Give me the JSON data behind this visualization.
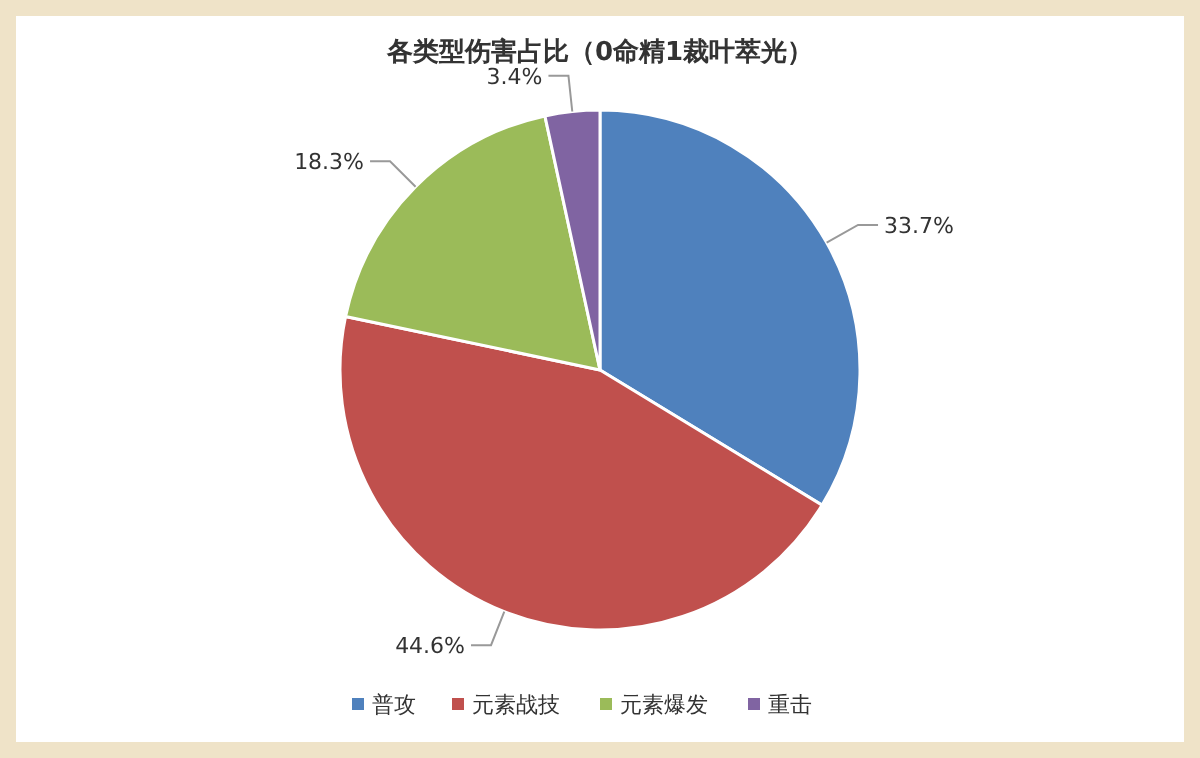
{
  "chart_data": {
    "type": "pie",
    "title": "各类型伤害占比（0命精1裁叶萃光）",
    "categories": [
      "普攻",
      "元素战技",
      "元素爆发",
      "重击"
    ],
    "values": [
      33.7,
      44.6,
      18.3,
      3.4
    ],
    "colors": [
      "#4f81bd",
      "#c0504d",
      "#9bbb59",
      "#8064a2"
    ],
    "value_labels": [
      "33.7%",
      "44.6%",
      "18.3%",
      "3.4%"
    ],
    "legend": "bottom"
  }
}
